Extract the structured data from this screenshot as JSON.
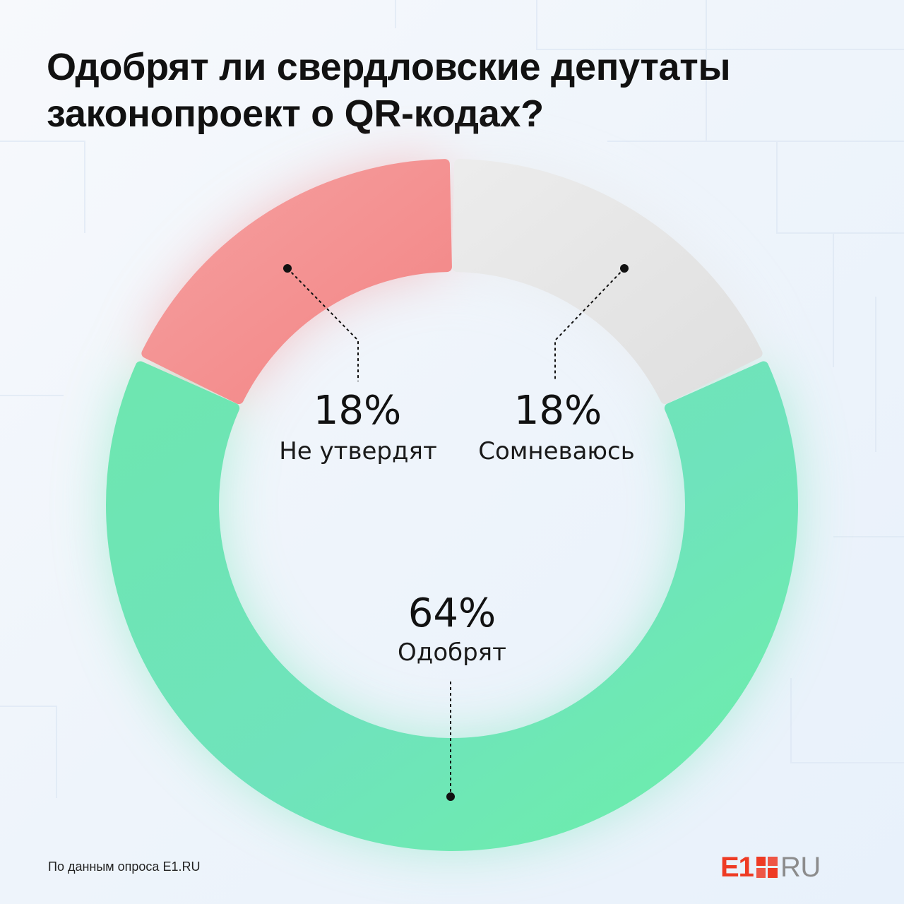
{
  "title_lines": [
    "Одобрят ли свердловские депутаты",
    "законопроект о QR-кодах?"
  ],
  "chart_data": {
    "type": "pie",
    "title": "Одобрят ли свердловские депутаты законопроект о QR-кодах?",
    "slices": [
      {
        "label": "Не утвердят",
        "value": 18,
        "value_label": "18%",
        "color": "#f48e8e"
      },
      {
        "label": "Сомневаюсь",
        "value": 18,
        "value_label": "18%",
        "color": "#e6e6e6"
      },
      {
        "label": "Одобрят",
        "value": 64,
        "value_label": "64%",
        "color": "#6ee6b4"
      }
    ],
    "style": "donut"
  },
  "source": "По данным опроса E1.RU",
  "logo": {
    "primary": "E1",
    "secondary": "RU",
    "color": "#ee3b24"
  }
}
